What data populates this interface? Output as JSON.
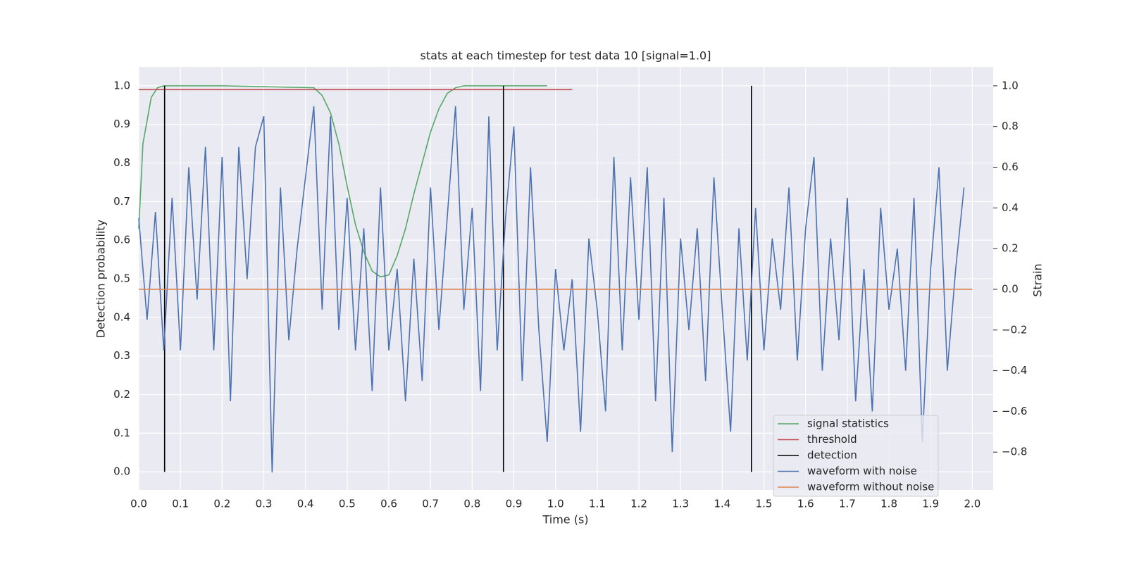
{
  "chart_data": {
    "type": "line",
    "title": "stats at each timestep for test data 10 [signal=1.0]",
    "xlabel": "Time (s)",
    "ylabel": "Detection probability",
    "y2label": "Strain",
    "xlim": [
      0,
      2.05
    ],
    "ylim": [
      -0.047,
      1.049
    ],
    "y2lim": [
      -0.986,
      1.093
    ],
    "xticks": [
      {
        "value": 0,
        "label": "0.0"
      },
      0.1,
      0.2,
      0.3,
      0.4,
      0.5,
      0.6,
      0.7,
      0.8,
      0.9,
      {
        "value": 1,
        "label": "1.0"
      },
      1.1,
      1.2,
      1.3,
      1.4,
      1.5,
      1.6,
      1.7,
      1.8,
      1.9,
      {
        "value": 2,
        "label": "2.0"
      }
    ],
    "yticks": [
      {
        "value": 0,
        "label": "0.0"
      },
      0.1,
      0.2,
      0.3,
      0.4,
      0.5,
      0.6,
      0.7,
      0.8,
      0.9,
      {
        "value": 1,
        "label": "1.0"
      }
    ],
    "y2ticks": [
      {
        "value": -0.8,
        "label": "−0.8"
      },
      {
        "value": -0.6,
        "label": "−0.6"
      },
      {
        "value": -0.4,
        "label": "−0.4"
      },
      {
        "value": -0.2,
        "label": "−0.2"
      },
      {
        "value": 0,
        "label": "0.0"
      },
      0.2,
      0.4,
      0.6,
      0.8,
      {
        "value": 1,
        "label": "1.0"
      }
    ],
    "grid": true,
    "legend": "lower right",
    "series": [
      {
        "name": "signal statistics",
        "color": "#55a868",
        "axis": "y",
        "x": [
          0,
          0.01,
          0.03,
          0.045,
          0.06,
          0.2,
          0.42,
          0.44,
          0.46,
          0.48,
          0.5,
          0.52,
          0.54,
          0.56,
          0.58,
          0.6,
          0.62,
          0.64,
          0.66,
          0.68,
          0.7,
          0.72,
          0.74,
          0.76,
          0.78,
          0.98
        ],
        "values": [
          0.63,
          0.85,
          0.97,
          0.995,
          1.0,
          1.0,
          0.995,
          0.975,
          0.93,
          0.85,
          0.74,
          0.64,
          0.57,
          0.52,
          0.505,
          0.51,
          0.56,
          0.63,
          0.72,
          0.8,
          0.88,
          0.94,
          0.98,
          0.995,
          1.0,
          1.0
        ]
      },
      {
        "name": "threshold",
        "color": "#c44e52",
        "axis": "y",
        "x": [
          0,
          1.04
        ],
        "values": [
          0.99,
          0.99
        ]
      },
      {
        "name": "detection",
        "color": "#000000",
        "axis": "y",
        "x": [
          0.062,
          0.062,
          0.062,
          0.875,
          0.875,
          0.875,
          1.47,
          1.47,
          1.47
        ],
        "values": [
          0,
          1,
          null,
          0,
          1,
          null,
          0,
          1,
          null
        ]
      },
      {
        "name": "waveform with noise",
        "color": "#4c72b0",
        "axis": "y2",
        "x": [
          0,
          0.02,
          0.04,
          0.06,
          0.08,
          0.1,
          0.12,
          0.14,
          0.16,
          0.18,
          0.2,
          0.22,
          0.24,
          0.26,
          0.28,
          0.3,
          0.32,
          0.34,
          0.36,
          0.38,
          0.4,
          0.42,
          0.44,
          0.46,
          0.48,
          0.5,
          0.52,
          0.54,
          0.56,
          0.58,
          0.6,
          0.62,
          0.64,
          0.66,
          0.68,
          0.7,
          0.72,
          0.74,
          0.76,
          0.78,
          0.8,
          0.82,
          0.84,
          0.86,
          0.88,
          0.9,
          0.92,
          0.94,
          0.96,
          0.98,
          1,
          1.02,
          1.04,
          1.06,
          1.08,
          1.1,
          1.12,
          1.14,
          1.16,
          1.18,
          1.2,
          1.22,
          1.24,
          1.26,
          1.28,
          1.3,
          1.32,
          1.34,
          1.36,
          1.38,
          1.4,
          1.42,
          1.44,
          1.46,
          1.48,
          1.5,
          1.52,
          1.54,
          1.56,
          1.58,
          1.6,
          1.62,
          1.64,
          1.66,
          1.68,
          1.7,
          1.72,
          1.74,
          1.76,
          1.78,
          1.8,
          1.82,
          1.84,
          1.86,
          1.88,
          1.9,
          1.92,
          1.94,
          1.96,
          1.98
        ],
        "values": [
          0.35,
          -0.15,
          0.38,
          -0.3,
          0.45,
          -0.3,
          0.6,
          -0.05,
          0.7,
          -0.3,
          0.65,
          -0.55,
          0.7,
          0.05,
          0.7,
          0.85,
          -0.9,
          0.5,
          -0.25,
          0.2,
          0.55,
          0.9,
          -0.1,
          0.85,
          -0.2,
          0.45,
          -0.3,
          0.3,
          -0.5,
          0.5,
          -0.3,
          0.1,
          -0.55,
          0.15,
          -0.45,
          0.5,
          -0.2,
          0.35,
          0.9,
          -0.1,
          0.4,
          -0.5,
          0.85,
          -0.3,
          0.35,
          0.8,
          -0.45,
          0.6,
          -0.2,
          -0.75,
          0.1,
          -0.3,
          0.05,
          -0.7,
          0.25,
          -0.1,
          -0.6,
          0.65,
          -0.3,
          0.55,
          -0.15,
          0.6,
          -0.55,
          0.45,
          -0.8,
          0.25,
          -0.2,
          0.3,
          -0.45,
          0.55,
          -0.1,
          -0.7,
          0.3,
          -0.35,
          0.4,
          -0.3,
          0.25,
          -0.1,
          0.5,
          -0.35,
          0.3,
          0.65,
          -0.4,
          0.25,
          -0.25,
          0.45,
          -0.55,
          0.1,
          -0.6,
          0.4,
          -0.1,
          0.2,
          -0.4,
          0.45,
          -0.75,
          0.1,
          0.6,
          -0.4,
          0.1,
          0.5
        ]
      },
      {
        "name": "waveform without noise",
        "color": "#dd8452",
        "axis": "y2",
        "x": [
          0,
          2.0
        ],
        "values": [
          0,
          0
        ]
      }
    ]
  }
}
